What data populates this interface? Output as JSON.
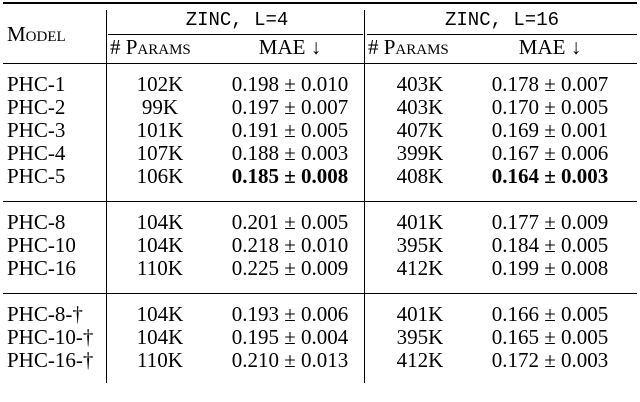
{
  "table": {
    "model_header": "Model",
    "group_headers": [
      "ZINC, L=4",
      "ZINC, L=16"
    ],
    "params_header": "# Params",
    "mae_header": "MAE ↓",
    "rows": [
      {
        "model": "PHC-1",
        "p4": "102K",
        "m4": "0.198 ± 0.010",
        "p16": "403K",
        "m16": "0.178 ± 0.007"
      },
      {
        "model": "PHC-2",
        "p4": "99K",
        "m4": "0.197 ± 0.007",
        "p16": "403K",
        "m16": "0.170 ± 0.005"
      },
      {
        "model": "PHC-3",
        "p4": "101K",
        "m4": "0.191 ± 0.005",
        "p16": "407K",
        "m16": "0.169 ± 0.001"
      },
      {
        "model": "PHC-4",
        "p4": "107K",
        "m4": "0.188 ± 0.003",
        "p16": "399K",
        "m16": "0.167 ± 0.006"
      },
      {
        "model": "PHC-5",
        "p4": "106K",
        "m4": "0.185 ± 0.008",
        "p16": "408K",
        "m16": "0.164 ± 0.003"
      },
      {
        "model": "PHC-8",
        "p4": "104K",
        "m4": "0.201 ± 0.005",
        "p16": "401K",
        "m16": "0.177 ± 0.009"
      },
      {
        "model": "PHC-10",
        "p4": "104K",
        "m4": "0.218 ± 0.010",
        "p16": "395K",
        "m16": "0.184 ± 0.005"
      },
      {
        "model": "PHC-16",
        "p4": "110K",
        "m4": "0.225 ± 0.009",
        "p16": "412K",
        "m16": "0.199 ± 0.008"
      },
      {
        "model": "PHC-8-†",
        "p4": "104K",
        "m4": "0.193 ± 0.006",
        "p16": "401K",
        "m16": "0.166 ± 0.005"
      },
      {
        "model": "PHC-10-†",
        "p4": "104K",
        "m4": "0.195 ± 0.004",
        "p16": "395K",
        "m16": "0.165 ± 0.005"
      },
      {
        "model": "PHC-16-†",
        "p4": "110K",
        "m4": "0.210 ± 0.013",
        "p16": "412K",
        "m16": "0.172 ± 0.003"
      }
    ],
    "bold_rows": [
      4
    ]
  }
}
